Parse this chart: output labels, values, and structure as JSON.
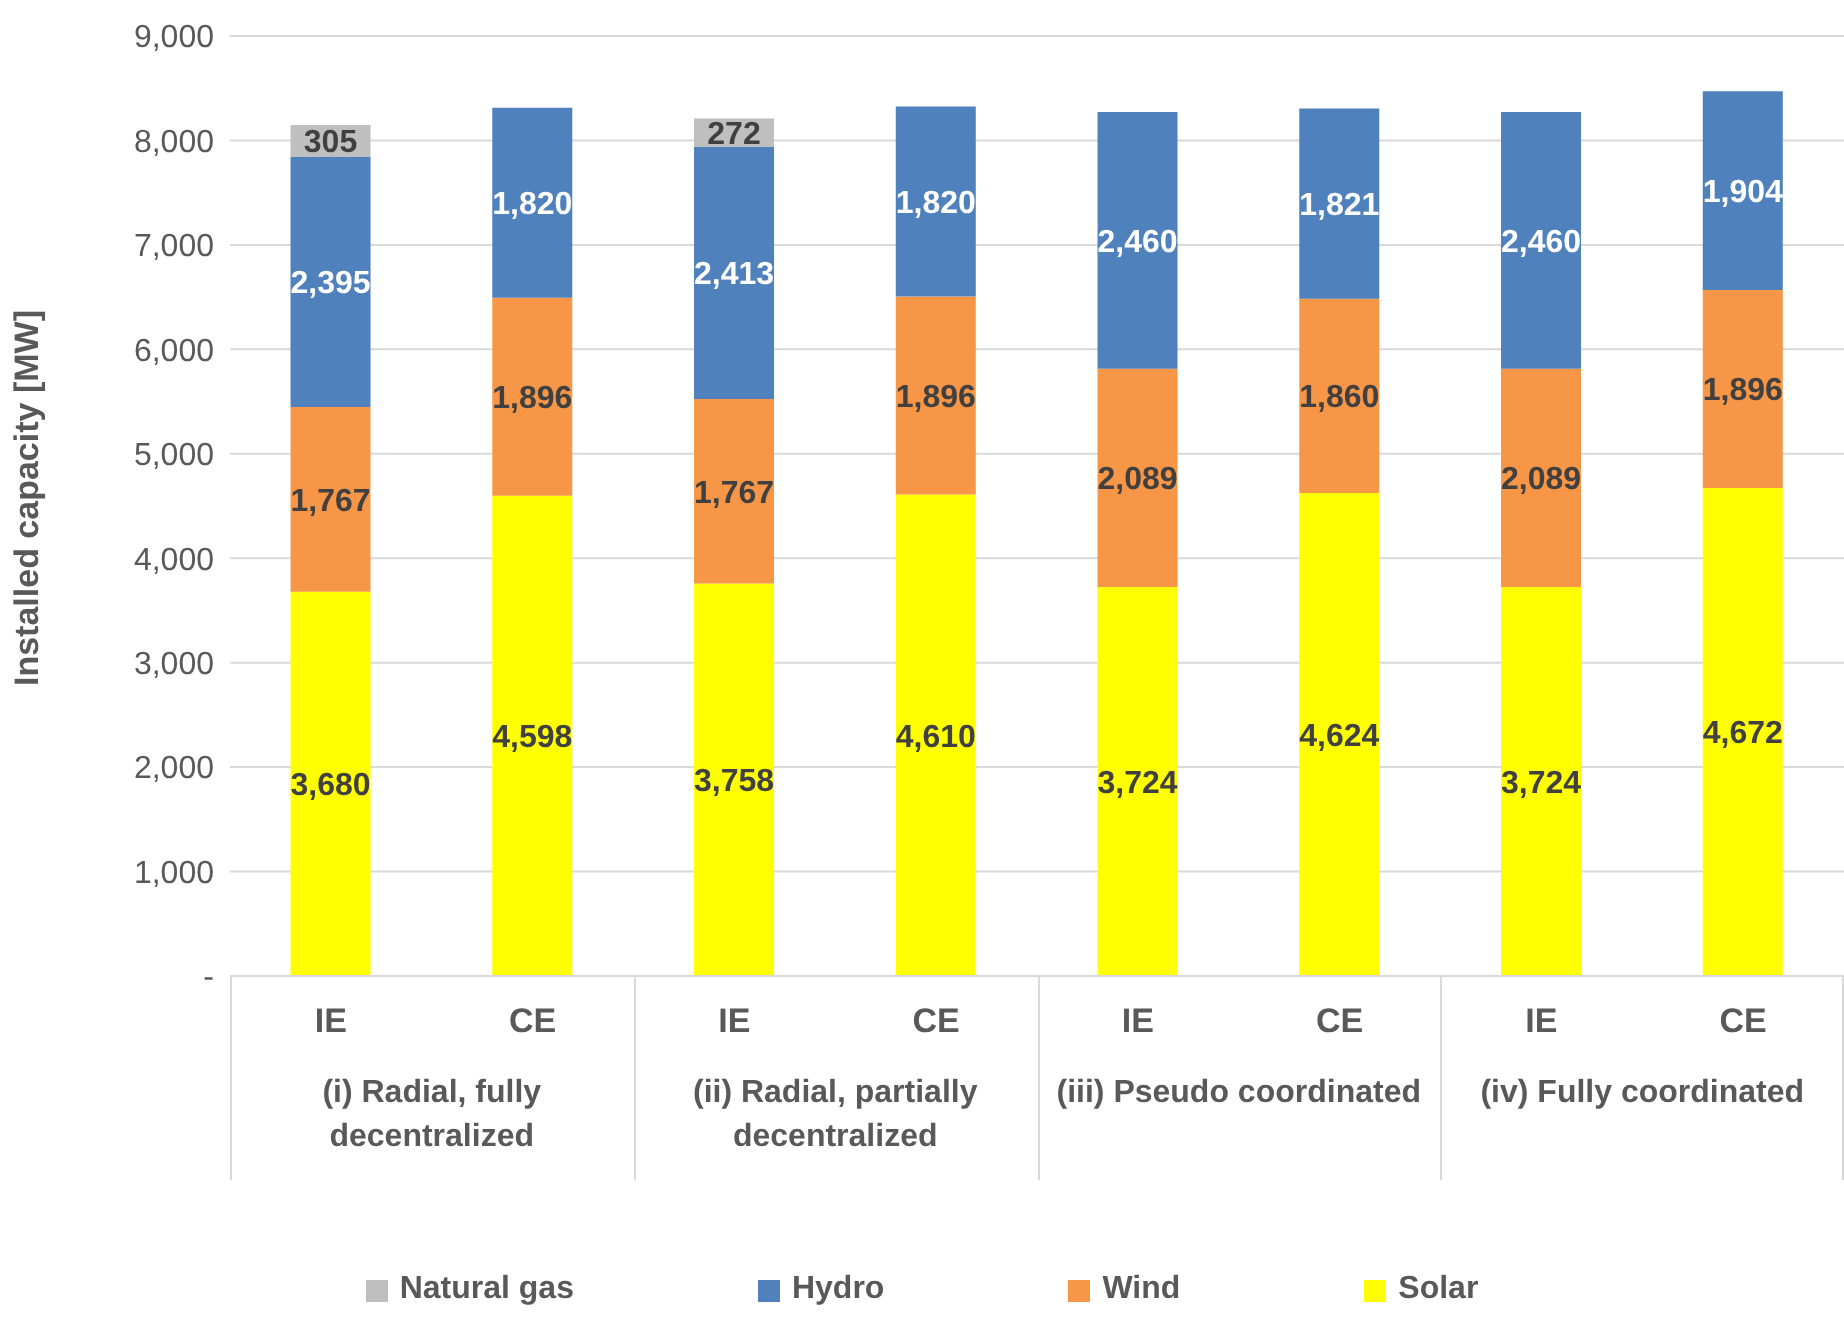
{
  "chart_data": {
    "type": "bar",
    "stacked": true,
    "ylabel": "Installed capacity [MW]",
    "categories": [
      "IE",
      "CE",
      "IE",
      "CE",
      "IE",
      "CE",
      "IE",
      "CE"
    ],
    "annotations": [
      "(i) Radial, fully decentralized",
      "(ii) Radial, partially decentralized",
      "(iii) Pseudo coordinated",
      "(iv) Fully coordinated"
    ],
    "series": [
      {
        "name": "Solar",
        "color": "#ffff00",
        "values": [
          3680,
          4598,
          3758,
          4610,
          3724,
          4624,
          3724,
          4672
        ],
        "value_labels": [
          "3,680",
          "4,598",
          "3,758",
          "4,610",
          "3,724",
          "4,624",
          "3,724",
          "4,672"
        ]
      },
      {
        "name": "Wind",
        "color": "#f79646",
        "values": [
          1767,
          1896,
          1767,
          1896,
          2089,
          1860,
          2089,
          1896
        ],
        "value_labels": [
          "1,767",
          "1,896",
          "1,767",
          "1,896",
          "2,089",
          "1,860",
          "2,089",
          "1,896"
        ]
      },
      {
        "name": "Hydro",
        "color": "#4f81bd",
        "values": [
          2395,
          1820,
          2413,
          1820,
          2460,
          1821,
          2460,
          1904
        ],
        "value_labels": [
          "2,395",
          "1,820",
          "2,413",
          "1,820",
          "2,460",
          "1,821",
          "2,460",
          "1,904"
        ]
      },
      {
        "name": "Natural gas",
        "color": "#bfbfbf",
        "values": [
          305,
          null,
          272,
          null,
          null,
          null,
          null,
          null
        ],
        "value_labels": [
          "305",
          null,
          "272",
          null,
          null,
          null,
          null,
          null
        ]
      }
    ],
    "ylim": [
      0,
      9000
    ],
    "yticks": [
      {
        "value": 0,
        "label": "-"
      },
      {
        "value": 1000,
        "label": "1,000"
      },
      {
        "value": 2000,
        "label": "2,000"
      },
      {
        "value": 3000,
        "label": "3,000"
      },
      {
        "value": 4000,
        "label": "4,000"
      },
      {
        "value": 5000,
        "label": "5,000"
      },
      {
        "value": 6000,
        "label": "6,000"
      },
      {
        "value": 7000,
        "label": "7,000"
      },
      {
        "value": 8000,
        "label": "8,000"
      },
      {
        "value": 9000,
        "label": "9,000"
      }
    ],
    "grid": "y",
    "legend": "bottom"
  }
}
